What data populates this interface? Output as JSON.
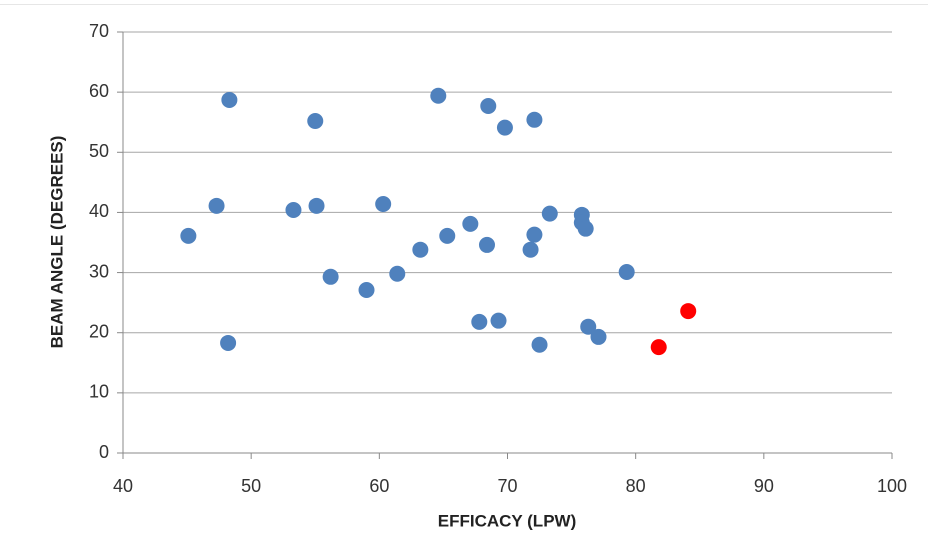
{
  "chart_data": {
    "type": "scatter",
    "x_label": "EFFICACY (LPW)",
    "y_label": "BEAM ANGLE (DEGREES)",
    "series": [
      {
        "color": "#4f81bd",
        "x": [
          45.1,
          47.3,
          48.3,
          48.2,
          53.3,
          55.0,
          55.1,
          56.2,
          59.0,
          60.3,
          61.4,
          63.2,
          64.6,
          65.3,
          67.1,
          67.8,
          68.4,
          68.5,
          69.3,
          69.8,
          71.8,
          72.1,
          72.1,
          72.5,
          73.3,
          75.8,
          75.8,
          76.1,
          76.3,
          77.1,
          79.3
        ],
        "values": [
          36.1,
          41.1,
          58.7,
          18.3,
          40.4,
          55.2,
          41.1,
          29.3,
          27.1,
          41.4,
          29.8,
          33.8,
          59.4,
          36.1,
          38.1,
          21.8,
          34.6,
          57.7,
          22.0,
          54.1,
          33.8,
          55.4,
          36.3,
          18.0,
          39.8,
          39.6,
          38.3,
          37.3,
          21.0,
          19.3,
          30.1
        ]
      },
      {
        "color": "#ff0000",
        "x": [
          81.8,
          84.1
        ],
        "values": [
          17.6,
          23.6
        ]
      }
    ],
    "xlim": [
      40,
      100
    ],
    "xticks": [
      40,
      50,
      60,
      70,
      80,
      90,
      100
    ],
    "ylim": [
      0,
      70
    ],
    "yticks": [
      0,
      10,
      20,
      30,
      40,
      50,
      60,
      70
    ],
    "grid": true
  }
}
